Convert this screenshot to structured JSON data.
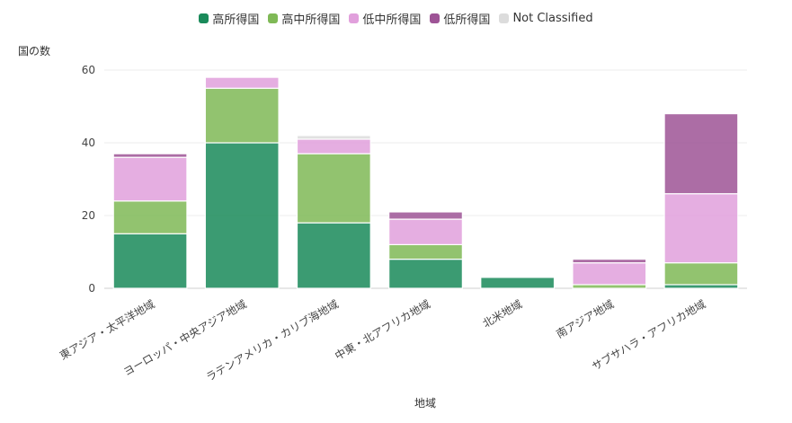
{
  "chart_data": {
    "type": "bar",
    "stacked": true,
    "title": "",
    "xlabel": "地域",
    "ylabel": "国の数",
    "ylim": [
      0,
      60
    ],
    "yticks": [
      0,
      20,
      40,
      60
    ],
    "grid": true,
    "legend_position": "top",
    "categories": [
      "東アジア・太平洋地域",
      "ヨーロッパ・中央アジア地域",
      "ラテンアメリカ・カリブ海地域",
      "中東・北アフリカ地域",
      "北米地域",
      "南アジア地域",
      "サブサハラ・アフリカ地域"
    ],
    "series": [
      {
        "name": "高所得国",
        "color": "#1a8a5a",
        "values": [
          15,
          40,
          18,
          8,
          3,
          0,
          1
        ]
      },
      {
        "name": "高中所得国",
        "color": "#7fb956",
        "values": [
          9,
          15,
          19,
          4,
          0,
          1,
          6
        ]
      },
      {
        "name": "低中所得国",
        "color": "#e1a0dc",
        "values": [
          12,
          3,
          4,
          7,
          0,
          6,
          19
        ]
      },
      {
        "name": "低所得国",
        "color": "#9e5496",
        "values": [
          1,
          0,
          0,
          2,
          0,
          1,
          22
        ]
      },
      {
        "name": "Not Classified",
        "color": "#dcdcdc",
        "values": [
          0,
          0,
          1,
          0,
          0,
          0,
          0
        ]
      }
    ]
  }
}
